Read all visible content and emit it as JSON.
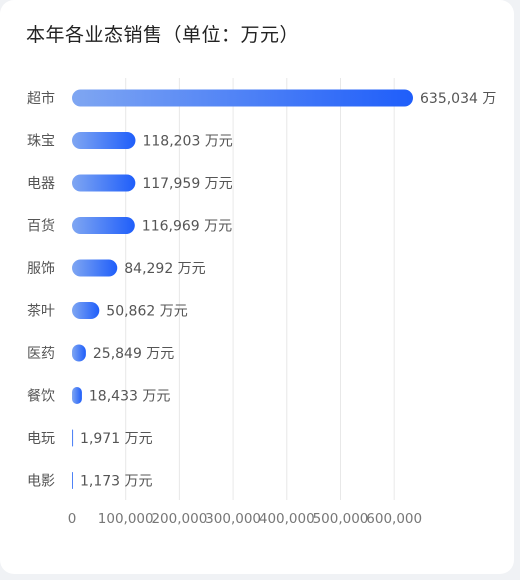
{
  "title": "本年各业态销售（单位：万元）",
  "colors": {
    "bar_start": "#7fa6f2",
    "bar_end": "#1f5efa",
    "grid": "#e8e8e8"
  },
  "chart_data": {
    "type": "bar",
    "orientation": "horizontal",
    "categories": [
      "超市",
      "珠宝",
      "电器",
      "百货",
      "服饰",
      "茶叶",
      "医药",
      "餐饮",
      "电玩",
      "电影"
    ],
    "values": [
      635034,
      118203,
      117959,
      116969,
      84292,
      50862,
      25849,
      18433,
      1971,
      1173
    ],
    "value_labels": [
      "635,034 万",
      "118,203 万元",
      "117,959 万元",
      "116,969 万元",
      "84,292 万元",
      "50,862 万元",
      "25,849 万元",
      "18,433 万元",
      "1,971 万元",
      "1,173 万元"
    ],
    "x_ticks": [
      0,
      100000,
      200000,
      300000,
      400000,
      500000,
      600000
    ],
    "x_tick_labels": [
      "0",
      "100,000",
      "200,000",
      "300,000",
      "400,000",
      "500,000",
      "600,000"
    ],
    "xlim": [
      0,
      635034
    ],
    "grid": true
  }
}
